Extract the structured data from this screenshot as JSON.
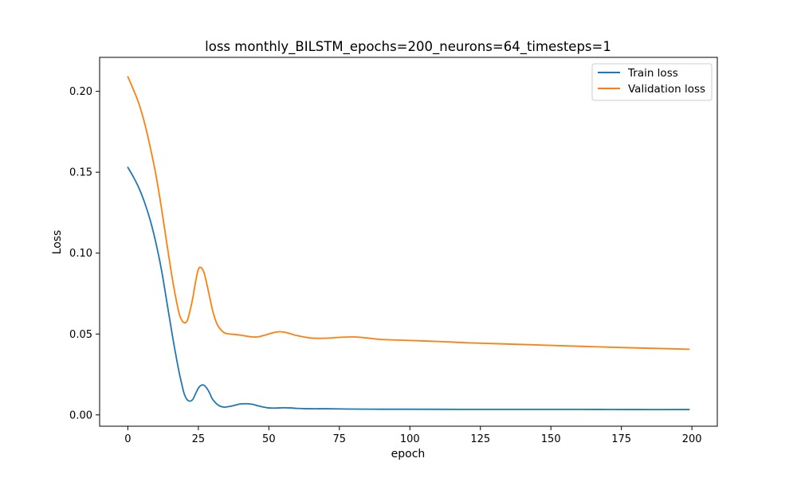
{
  "chart_data": {
    "type": "line",
    "title": "loss monthly_BILSTM_epochs=200_neurons=64_timesteps=1",
    "xlabel": "epoch",
    "ylabel": "Loss",
    "xlim": [
      -10,
      209
    ],
    "ylim": [
      -0.007,
      0.221
    ],
    "xticks": [
      0,
      25,
      50,
      75,
      100,
      125,
      150,
      175,
      200
    ],
    "yticks": [
      0.0,
      0.05,
      0.1,
      0.15,
      0.2
    ],
    "ytick_labels": [
      "0.00",
      "0.05",
      "0.10",
      "0.15",
      "0.20"
    ],
    "grid": false,
    "legend_position": "top-right",
    "series": [
      {
        "name": "Train loss",
        "color": "#1f77b4",
        "x": [
          0,
          2,
          4,
          6,
          8,
          10,
          12,
          14,
          16,
          18,
          19,
          20,
          21,
          22,
          23,
          24,
          25,
          26,
          27,
          28,
          29,
          30,
          32,
          34,
          36,
          38,
          40,
          42,
          44,
          46,
          48,
          50,
          52,
          55,
          58,
          60,
          65,
          70,
          75,
          80,
          90,
          100,
          120,
          140,
          160,
          180,
          199
        ],
        "y": [
          0.153,
          0.147,
          0.14,
          0.131,
          0.12,
          0.106,
          0.089,
          0.068,
          0.047,
          0.028,
          0.02,
          0.013,
          0.0095,
          0.0085,
          0.0095,
          0.013,
          0.0165,
          0.0183,
          0.0183,
          0.0165,
          0.0135,
          0.0098,
          0.0061,
          0.0048,
          0.0052,
          0.006,
          0.0068,
          0.0069,
          0.0066,
          0.0057,
          0.0049,
          0.0043,
          0.0042,
          0.0044,
          0.0043,
          0.004,
          0.0038,
          0.0038,
          0.0037,
          0.0036,
          0.0035,
          0.0035,
          0.0034,
          0.0034,
          0.0034,
          0.0033,
          0.0033
        ]
      },
      {
        "name": "Validation loss",
        "color": "#ff7f0e",
        "x": [
          0,
          2,
          4,
          6,
          8,
          10,
          12,
          14,
          16,
          18,
          19,
          20,
          21,
          22,
          23,
          24,
          25,
          26,
          27,
          28,
          29,
          30,
          31,
          32,
          34,
          36,
          38,
          40,
          42,
          44,
          46,
          48,
          50,
          52,
          54,
          56,
          58,
          60,
          65,
          70,
          75,
          80,
          85,
          90,
          100,
          110,
          120,
          140,
          160,
          180,
          199
        ],
        "y": [
          0.209,
          0.201,
          0.192,
          0.18,
          0.165,
          0.148,
          0.127,
          0.104,
          0.082,
          0.064,
          0.059,
          0.057,
          0.058,
          0.064,
          0.072,
          0.082,
          0.09,
          0.091,
          0.088,
          0.081,
          0.073,
          0.065,
          0.059,
          0.055,
          0.051,
          0.05,
          0.0497,
          0.0493,
          0.0487,
          0.0482,
          0.0482,
          0.049,
          0.05,
          0.051,
          0.0514,
          0.0509,
          0.05,
          0.049,
          0.0475,
          0.0474,
          0.0479,
          0.0482,
          0.0475,
          0.0466,
          0.046,
          0.0454,
          0.0446,
          0.0435,
          0.0424,
          0.0414,
          0.0406
        ]
      }
    ]
  }
}
